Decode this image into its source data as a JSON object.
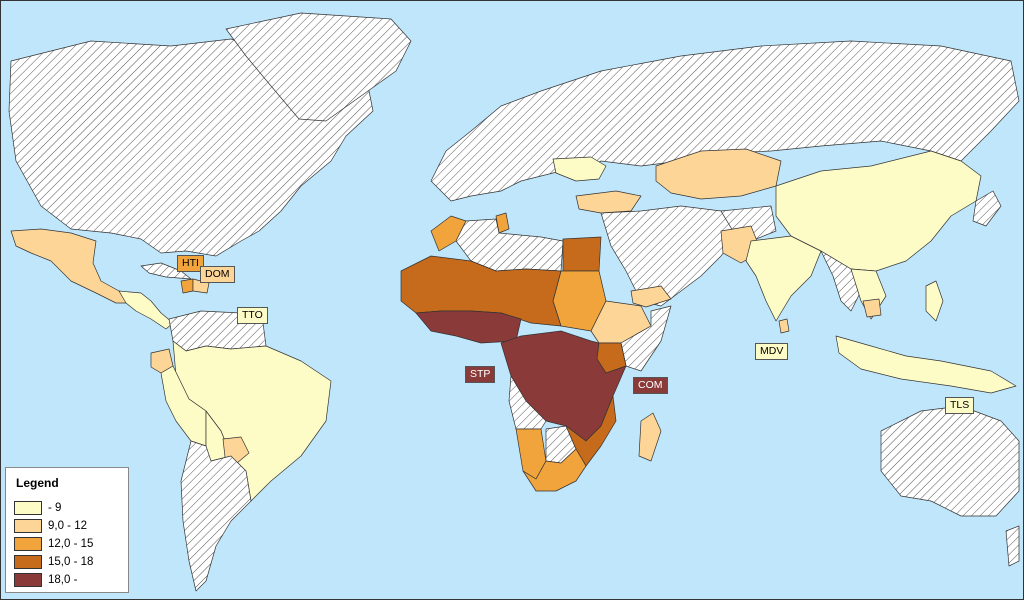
{
  "legend": {
    "title": "Legend",
    "classes": [
      {
        "label": " - 9",
        "color": "#fefcc6"
      },
      {
        "label": "9,0 - 12",
        "color": "#fdd597"
      },
      {
        "label": "12,0 - 15",
        "color": "#f1a43b"
      },
      {
        "label": "15,0 - 18",
        "color": "#c66a1c"
      },
      {
        "label": "18,0 -",
        "color": "#8b3a3a"
      }
    ],
    "nodata_pattern": "diagonal-hatch"
  },
  "callouts": [
    {
      "code": "HTI",
      "class": 2
    },
    {
      "code": "DOM",
      "class": 1
    },
    {
      "code": "TTO",
      "class": 0
    },
    {
      "code": "STP",
      "class": 4
    },
    {
      "code": "COM",
      "class": 4
    },
    {
      "code": "MDV",
      "class": 0
    },
    {
      "code": "TLS",
      "class": 0
    }
  ],
  "colors": {
    "ocean": "#bfe6fb",
    "nodata_fill": "#ffffff",
    "nodata_hatch": "#555555"
  }
}
